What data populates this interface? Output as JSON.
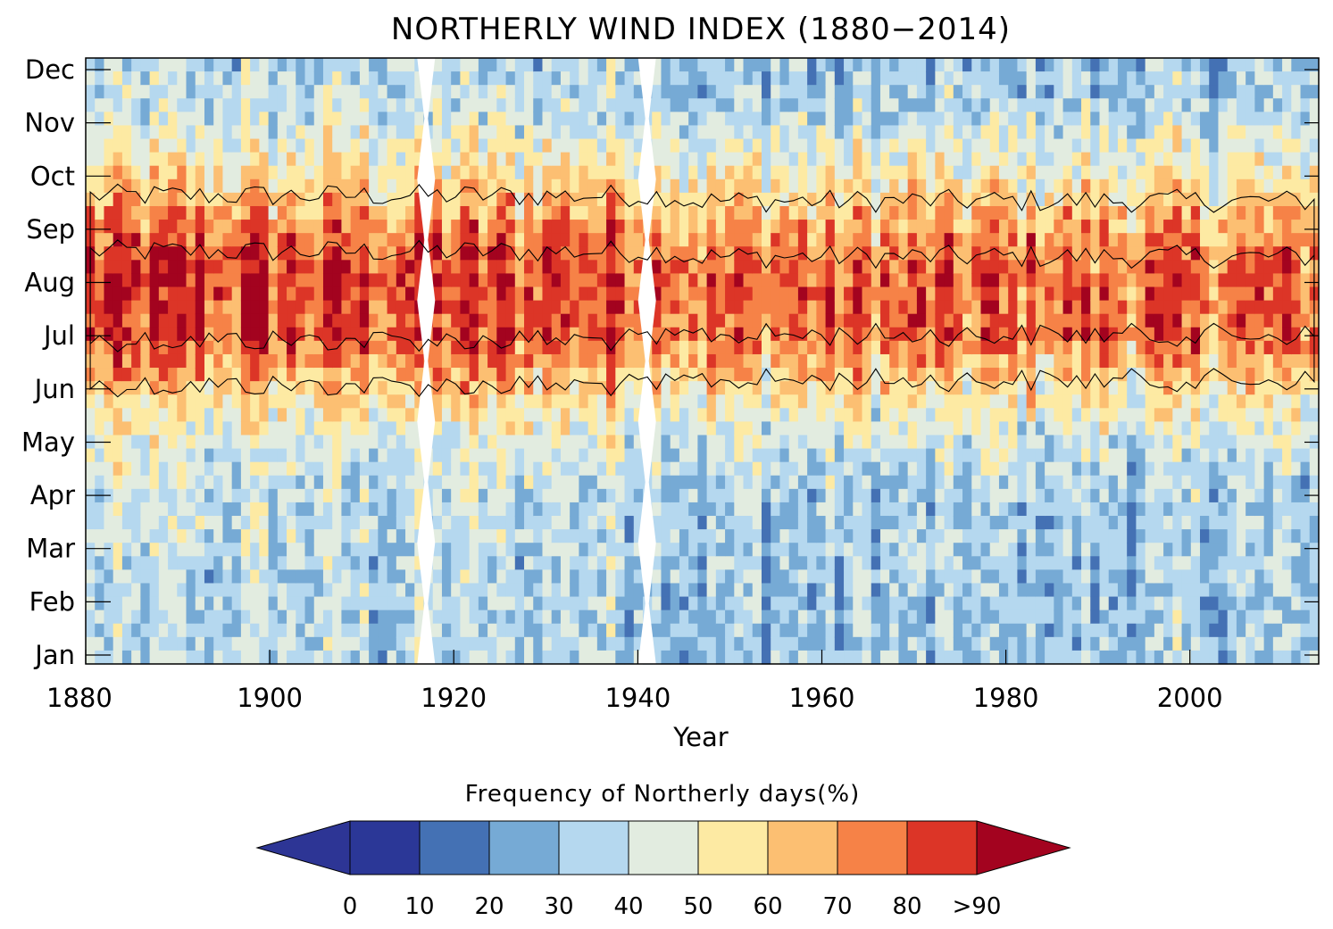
{
  "chart_data": {
    "type": "heatmap",
    "title": "NORTHERLY WIND INDEX (1880−2014)",
    "xlabel": "Year",
    "ylabel": "",
    "x_ticks": [
      1880,
      1900,
      1920,
      1940,
      1960,
      1980,
      2000
    ],
    "x_tick_labels": [
      "1880",
      "1900",
      "1920",
      "1940",
      "1960",
      "1980",
      "2000"
    ],
    "xlim": [
      1880,
      2014
    ],
    "y_categories": [
      "Jan",
      "Feb",
      "Mar",
      "Apr",
      "May",
      "Jun",
      "Jul",
      "Aug",
      "Sep",
      "Oct",
      "Nov",
      "Dec"
    ],
    "years": [
      1880,
      2014
    ],
    "missing_years": [
      1917,
      1941
    ],
    "monthly_mean_percent": [
      {
        "month": "Jan",
        "value": 33
      },
      {
        "month": "Feb",
        "value": 32
      },
      {
        "month": "Mar",
        "value": 34
      },
      {
        "month": "Apr",
        "value": 35
      },
      {
        "month": "May",
        "value": 42
      },
      {
        "month": "Jun",
        "value": 58
      },
      {
        "month": "Jul",
        "value": 78
      },
      {
        "month": "Aug",
        "value": 80
      },
      {
        "month": "Sep",
        "value": 70
      },
      {
        "month": "Oct",
        "value": 52
      },
      {
        "month": "Nov",
        "value": 38
      },
      {
        "month": "Dec",
        "value": 32
      }
    ],
    "colorbar": {
      "title": "Frequency of Northerly days(%)",
      "levels": [
        "0",
        "10",
        "20",
        "30",
        "40",
        "50",
        "60",
        "70",
        "80",
        ">90"
      ],
      "colors": [
        "#2d3595",
        "#2b3797",
        "#4471b4",
        "#76aad5",
        "#b5d8ef",
        "#e2ece0",
        "#fdeaa3",
        "#fcbf72",
        "#f68247",
        "#dc3527",
        "#a3031f"
      ]
    },
    "contour_lines_at_percent": [
      70,
      80,
      90
    ]
  }
}
